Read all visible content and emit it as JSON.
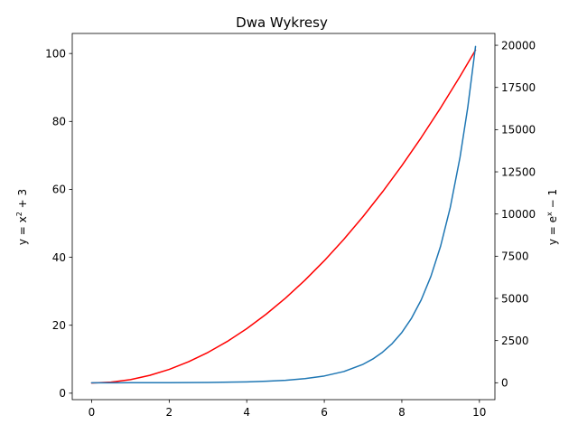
{
  "chart_data": {
    "type": "line",
    "title": "Dwa Wykresy",
    "xlabel": "",
    "xlim": [
      -0.5,
      10.4
    ],
    "x_ticks": [
      0,
      2,
      4,
      6,
      8,
      10
    ],
    "x_tick_labels": [
      "0",
      "2",
      "4",
      "6",
      "8",
      "10"
    ],
    "y_left": {
      "label_prefix": "y = x",
      "label_sup": "2",
      "label_suffix": " + 3",
      "ylim": [
        -1.9,
        105.9
      ],
      "ticks": [
        0,
        20,
        40,
        60,
        80,
        100
      ],
      "tick_labels": [
        "0",
        "20",
        "40",
        "60",
        "80",
        "100"
      ]
    },
    "y_right": {
      "label_prefix": "y = e",
      "label_sup": "x",
      "label_suffix": " − 1",
      "ylim": [
        -1000,
        20700
      ],
      "ticks": [
        0,
        2500,
        5000,
        7500,
        10000,
        12500,
        15000,
        17500,
        20000
      ],
      "tick_labels": [
        "0",
        "2500",
        "5000",
        "7500",
        "10000",
        "12500",
        "15000",
        "17500",
        "20000"
      ]
    },
    "series": [
      {
        "axis": "left",
        "color": "#ff0000",
        "x": [
          0,
          0.5,
          1,
          1.5,
          2,
          2.5,
          3,
          3.5,
          4,
          4.5,
          5,
          5.5,
          6,
          6.5,
          7,
          7.5,
          8,
          8.5,
          9,
          9.5,
          9.9
        ],
        "y": [
          3,
          3.25,
          4,
          5.25,
          7,
          9.25,
          12,
          15.25,
          19,
          23.25,
          28,
          33.25,
          39,
          45.25,
          52,
          59.25,
          67,
          75.25,
          84,
          93.25,
          101.01
        ]
      },
      {
        "axis": "right",
        "color": "#1f77b4",
        "x": [
          0,
          1,
          2,
          3,
          4,
          4.5,
          5,
          5.5,
          6,
          6.5,
          7,
          7.25,
          7.5,
          7.75,
          8,
          8.25,
          8.5,
          8.75,
          9,
          9.25,
          9.5,
          9.7,
          9.9
        ],
        "y": [
          0,
          1.7,
          6.4,
          19.1,
          53.6,
          89,
          147.4,
          243.7,
          402.4,
          664.1,
          1095.6,
          1407,
          1807,
          2321,
          2980,
          3827,
          4914,
          6310,
          8102,
          10405,
          13359,
          16317,
          19930
        ]
      }
    ]
  }
}
